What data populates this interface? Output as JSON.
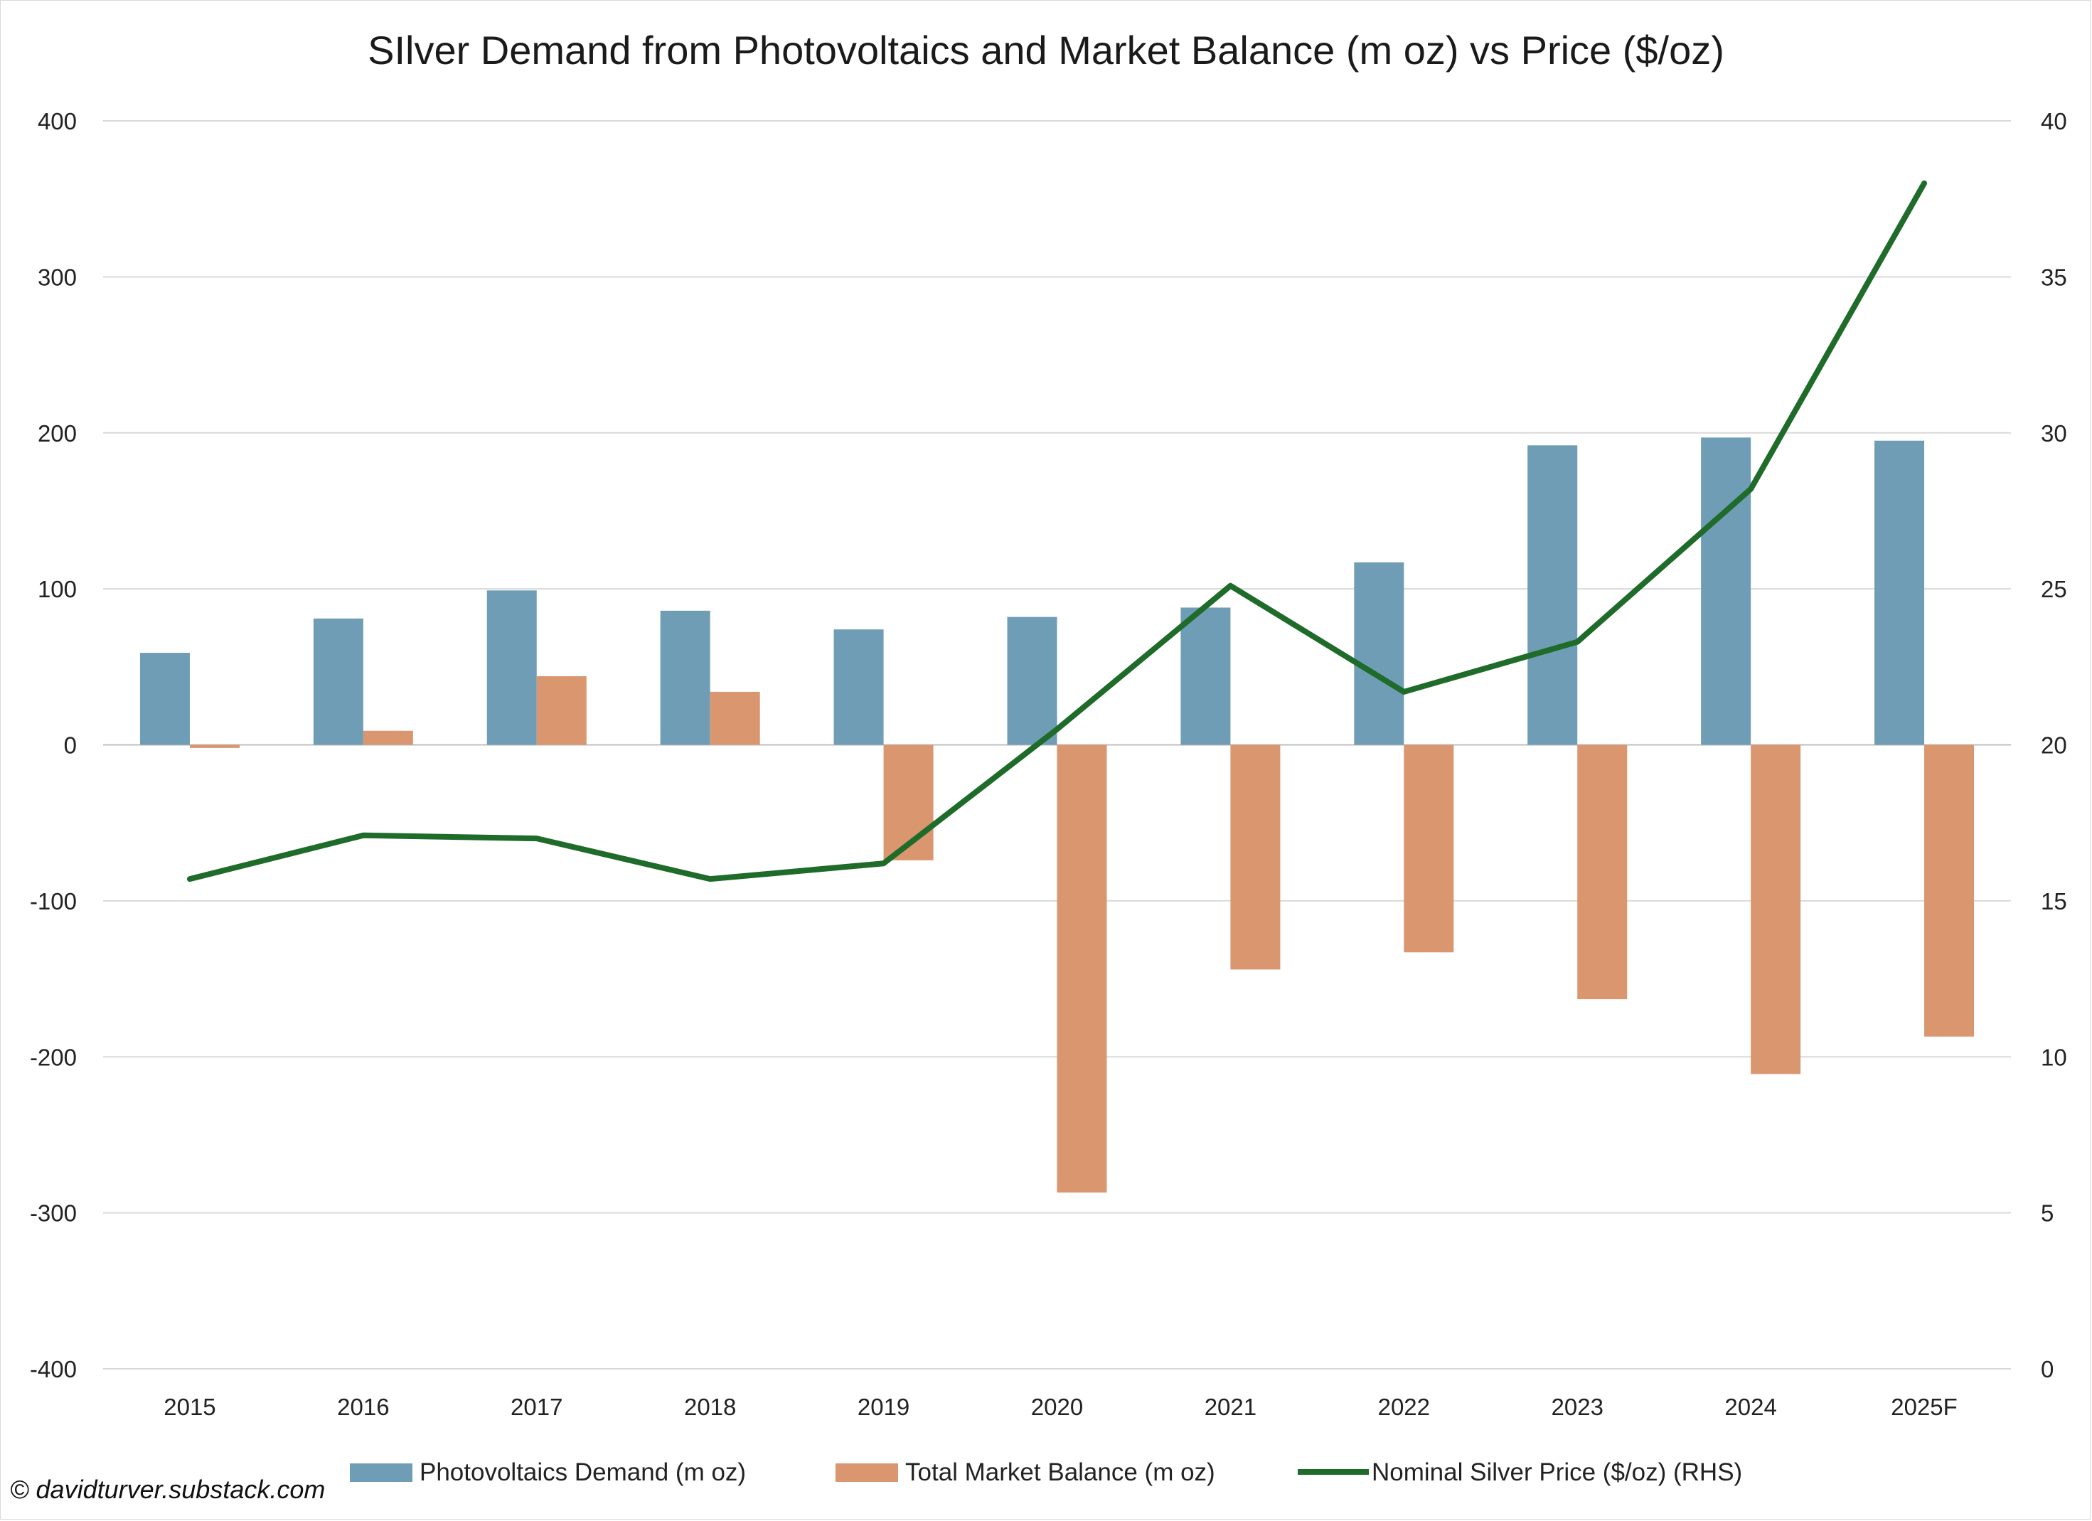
{
  "chart_data": {
    "type": "bar",
    "title": "SIlver Demand from Photovoltaics and Market Balance (m oz) vs Price ($/oz)",
    "categories": [
      "2015",
      "2016",
      "2017",
      "2018",
      "2019",
      "2020",
      "2021",
      "2022",
      "2023",
      "2024",
      "2025F"
    ],
    "series": [
      {
        "name": "Photovoltaics Demand (m oz)",
        "type": "bar",
        "axis": "left",
        "color": "#6f9db5",
        "values": [
          59,
          81,
          99,
          86,
          74,
          82,
          88,
          117,
          192,
          197,
          195
        ]
      },
      {
        "name": "Total Market Balance (m oz)",
        "type": "bar",
        "axis": "left",
        "color": "#d9966f",
        "values": [
          -2,
          9,
          44,
          34,
          -74,
          -287,
          -144,
          -133,
          -163,
          -211,
          -187
        ]
      },
      {
        "name": "Nominal Silver Price ($/oz) (RHS)",
        "type": "line",
        "axis": "right",
        "color": "#1e6b2a",
        "values": [
          15.7,
          17.1,
          17.0,
          15.7,
          16.2,
          20.5,
          25.1,
          21.7,
          23.3,
          28.2,
          38.0
        ]
      }
    ],
    "y_left": {
      "min": -400,
      "max": 400,
      "ticks": [
        400,
        300,
        200,
        100,
        0,
        -100,
        -200,
        -300,
        -400
      ]
    },
    "y_right": {
      "min": 0,
      "max": 40,
      "ticks": [
        40,
        35,
        30,
        25,
        20,
        15,
        10,
        5,
        0
      ]
    },
    "grid": true,
    "legend_position": "bottom"
  },
  "footer": {
    "copyright": "© davidturver.substack.com"
  }
}
